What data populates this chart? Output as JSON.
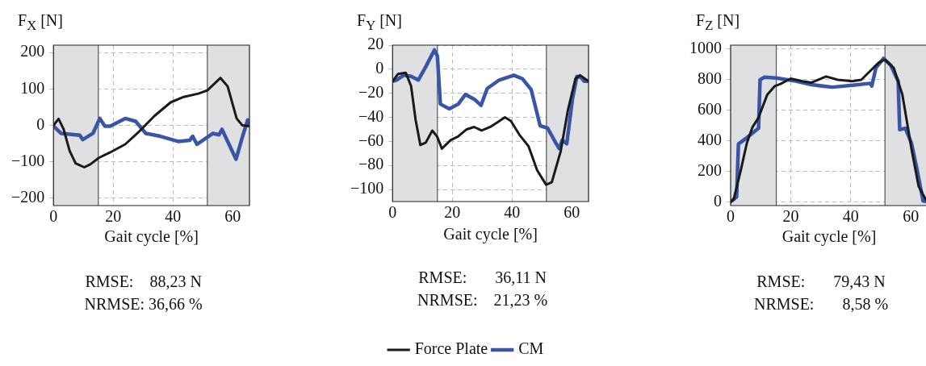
{
  "chart_data": [
    {
      "type": "line",
      "title": "F$_{X}$ [N]",
      "xlabel": "Gait cycle [%]",
      "xlim": [
        0,
        65.6
      ],
      "xticks": [
        0,
        20,
        40,
        60
      ],
      "ylim": [
        -220,
        220
      ],
      "yticks": [
        -200,
        -100,
        0,
        100,
        200
      ],
      "grid": true,
      "legend": false,
      "marker": "none",
      "line_style": "solid",
      "bands": [
        {
          "axis": "x",
          "from": 0,
          "to": 15,
          "color": "#dfe0e2"
        },
        {
          "axis": "x",
          "from": 51.5,
          "to": 65.6,
          "color": "#dfe0e2"
        }
      ],
      "annotations": [
        "RMSE:    88,23 N",
        "NRMSE: 36,66 %"
      ],
      "ref_lines": [
        {
          "axis": "x",
          "value": 15,
          "color": "#555555"
        },
        {
          "axis": "x",
          "value": 51.5,
          "color": "#555555"
        }
      ],
      "series": [
        {
          "color": "#1a1a1a",
          "x": [
            0,
            1.7,
            3.4,
            5.4,
            7.4,
            10.3,
            12.3,
            15.2,
            19,
            24,
            28.9,
            33.8,
            39.2,
            43.6,
            48.5,
            51.5,
            55.9,
            58.3,
            61.3,
            63.2,
            65.6
          ],
          "values": [
            0,
            18,
            -11,
            -70,
            -104,
            -115,
            -107,
            -89,
            -74,
            -52,
            -15,
            26,
            63,
            78,
            87,
            96,
            130,
            107,
            19,
            0,
            -2
          ]
        },
        {
          "color": "#3a55a6",
          "x": [
            0,
            2.5,
            8.8,
            9.8,
            13.2,
            15.5,
            17.2,
            19,
            24,
            27.5,
            30.9,
            35.8,
            41.7,
            45.6,
            46.6,
            48,
            53.4,
            55.4,
            56.4,
            61.1,
            63.2,
            65,
            65.6
          ],
          "values": [
            -2,
            -22,
            -27,
            -39,
            -22,
            19,
            -2,
            -2,
            19,
            11,
            -22,
            -30,
            -44,
            -41,
            -30,
            -52,
            -22,
            -26,
            -11,
            -93,
            -33,
            15,
            0
          ]
        }
      ]
    },
    {
      "type": "line",
      "title": "F$_{Y}$ [N]",
      "xlabel": "Gait cycle [%]",
      "xlim": [
        0,
        65.6
      ],
      "xticks": [
        0,
        20,
        40,
        60
      ],
      "ylim": [
        -110,
        20
      ],
      "yticks": [
        -100,
        -80,
        -60,
        -40,
        -20,
        0,
        20
      ],
      "grid": true,
      "legend": "bottom",
      "marker": "none",
      "line_style": "solid",
      "bands": [
        {
          "axis": "x",
          "from": 0,
          "to": 15,
          "color": "#dfe0e2"
        },
        {
          "axis": "x",
          "from": 51.5,
          "to": 65.6,
          "color": "#dfe0e2"
        }
      ],
      "annotations": [
        "RMSE:       36,11 N",
        "NRMSE:    21,23 %"
      ],
      "ref_lines": [
        {
          "axis": "x",
          "value": 15,
          "color": "#555555"
        },
        {
          "axis": "x",
          "value": 51.5,
          "color": "#555555"
        }
      ],
      "series": [
        {
          "name": "Force Plate",
          "color": "#1a1a1a",
          "x": [
            0,
            1.8,
            4.4,
            6.2,
            7.7,
            9.3,
            11.1,
            13.3,
            14.9,
            16.5,
            19.4,
            21.9,
            24.8,
            27.3,
            29.8,
            32.7,
            35.2,
            37.6,
            39.6,
            42.6,
            45.5,
            48.4,
            51.4,
            53.3,
            56.3,
            58.7,
            61.2,
            62.7,
            65.6
          ],
          "values": [
            -10,
            -4,
            -3,
            -14,
            -42,
            -63,
            -61,
            -51,
            -56,
            -66,
            -59,
            -56,
            -50,
            -48,
            -51,
            -48,
            -44,
            -40,
            -43,
            -55,
            -64,
            -84,
            -96,
            -94,
            -68,
            -34,
            -8,
            -5,
            -10
          ]
        },
        {
          "name": "CM",
          "color": "#3a55a6",
          "x": [
            0,
            1.3,
            3.7,
            6.2,
            8.6,
            11.1,
            14,
            15,
            16,
            19,
            22,
            24.4,
            27.4,
            29.6,
            31.7,
            35.7,
            40.6,
            43.5,
            46.4,
            49.4,
            51.9,
            54.8,
            55.8,
            56.8,
            58.3,
            60.2,
            61.7,
            63.2,
            64.1,
            65.6
          ],
          "values": [
            -10,
            -9,
            -5,
            -6,
            -9,
            2,
            16,
            11,
            -29,
            -33,
            -29,
            -21,
            -25,
            -30,
            -16,
            -9,
            -5,
            -8,
            -17,
            -47,
            -49,
            -62,
            -66,
            -59,
            -62,
            -25,
            -6,
            -7,
            -10,
            -10
          ]
        }
      ]
    },
    {
      "type": "line",
      "title": "F$_{Z}$ [N]",
      "xlabel": "Gait cycle [%]",
      "xlim": [
        0,
        65.6
      ],
      "xticks": [
        0,
        20,
        40,
        60
      ],
      "ylim": [
        -25,
        1025
      ],
      "yticks": [
        0,
        200,
        400,
        600,
        800,
        1000
      ],
      "grid": true,
      "legend": false,
      "marker": "none",
      "line_style": "solid",
      "bands": [
        {
          "axis": "x",
          "from": 0,
          "to": 15.2,
          "color": "#dfe0e2"
        },
        {
          "axis": "x",
          "from": 51.4,
          "to": 65.6,
          "color": "#dfe0e2"
        }
      ],
      "annotations": [
        "RMSE:       79,43 N",
        "NRMSE:       8,58 %"
      ],
      "ref_lines": [
        {
          "axis": "x",
          "value": 15.2,
          "color": "#555555"
        },
        {
          "axis": "x",
          "value": 51.4,
          "color": "#555555"
        }
      ],
      "series": [
        {
          "color": "#1a1a1a",
          "x": [
            0,
            1,
            3.4,
            5.4,
            7.3,
            9.3,
            12.2,
            14.7,
            16.6,
            20,
            23.9,
            26.9,
            31.8,
            35.7,
            40.6,
            43.5,
            46.5,
            49.4,
            51.4,
            54.3,
            57.2,
            60.2,
            62.6,
            65,
            65.6
          ],
          "values": [
            0,
            14,
            208,
            384,
            489,
            551,
            701,
            757,
            771,
            806,
            789,
            780,
            820,
            798,
            789,
            798,
            856,
            912,
            930,
            877,
            701,
            349,
            102,
            14,
            0
          ]
        },
        {
          "color": "#3a55a6",
          "x": [
            0,
            2,
            2.6,
            5.4,
            9.3,
            9.8,
            11.2,
            15.2,
            21.1,
            26.9,
            33.8,
            40.6,
            46.5,
            47,
            48.4,
            50.9,
            53.3,
            55.8,
            56.3,
            58.2,
            60.2,
            62.1,
            64.1,
            65.6
          ],
          "values": [
            0,
            32,
            378,
            419,
            481,
            798,
            815,
            810,
            792,
            766,
            750,
            762,
            775,
            757,
            877,
            938,
            894,
            789,
            472,
            481,
            384,
            208,
            5,
            0
          ]
        }
      ]
    }
  ]
}
